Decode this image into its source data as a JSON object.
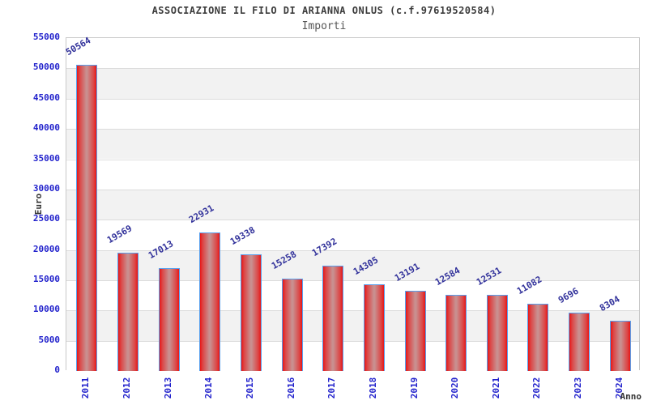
{
  "header": {
    "title": "ASSOCIAZIONE IL FILO DI ARIANNA ONLUS (c.f.97619520584)",
    "subtitle": "Importi"
  },
  "chart_data": {
    "type": "bar",
    "title": "ASSOCIAZIONE IL FILO DI ARIANNA ONLUS (c.f.97619520584)",
    "subtitle": "Importi",
    "xlabel": "Anno",
    "ylabel": "Euro",
    "categories": [
      "2011",
      "2012",
      "2013",
      "2014",
      "2015",
      "2016",
      "2017",
      "2018",
      "2019",
      "2020",
      "2021",
      "2022",
      "2023",
      "2024"
    ],
    "values": [
      50564,
      19569,
      17013,
      22931,
      19338,
      15258,
      17392,
      14305,
      13191,
      12584,
      12531,
      11082,
      9696,
      8304
    ],
    "ylim": [
      0,
      55000
    ],
    "ytick_step": 5000,
    "grid": true,
    "legend": "none",
    "band_colors": [
      "#ffffff",
      "#f2f2f2"
    ],
    "colors": {
      "bar_edge": "#e81616",
      "bar_center": "#c98f8f",
      "bar_border": "#58a0ee",
      "axis_text": "#2222cc",
      "value_label": "#32329b",
      "grid_line": "#dcdcdc",
      "plot_border": "#c9c9c9",
      "title": "#3c3c3c",
      "subtitle": "#555555",
      "axis_title": "#333333"
    }
  }
}
